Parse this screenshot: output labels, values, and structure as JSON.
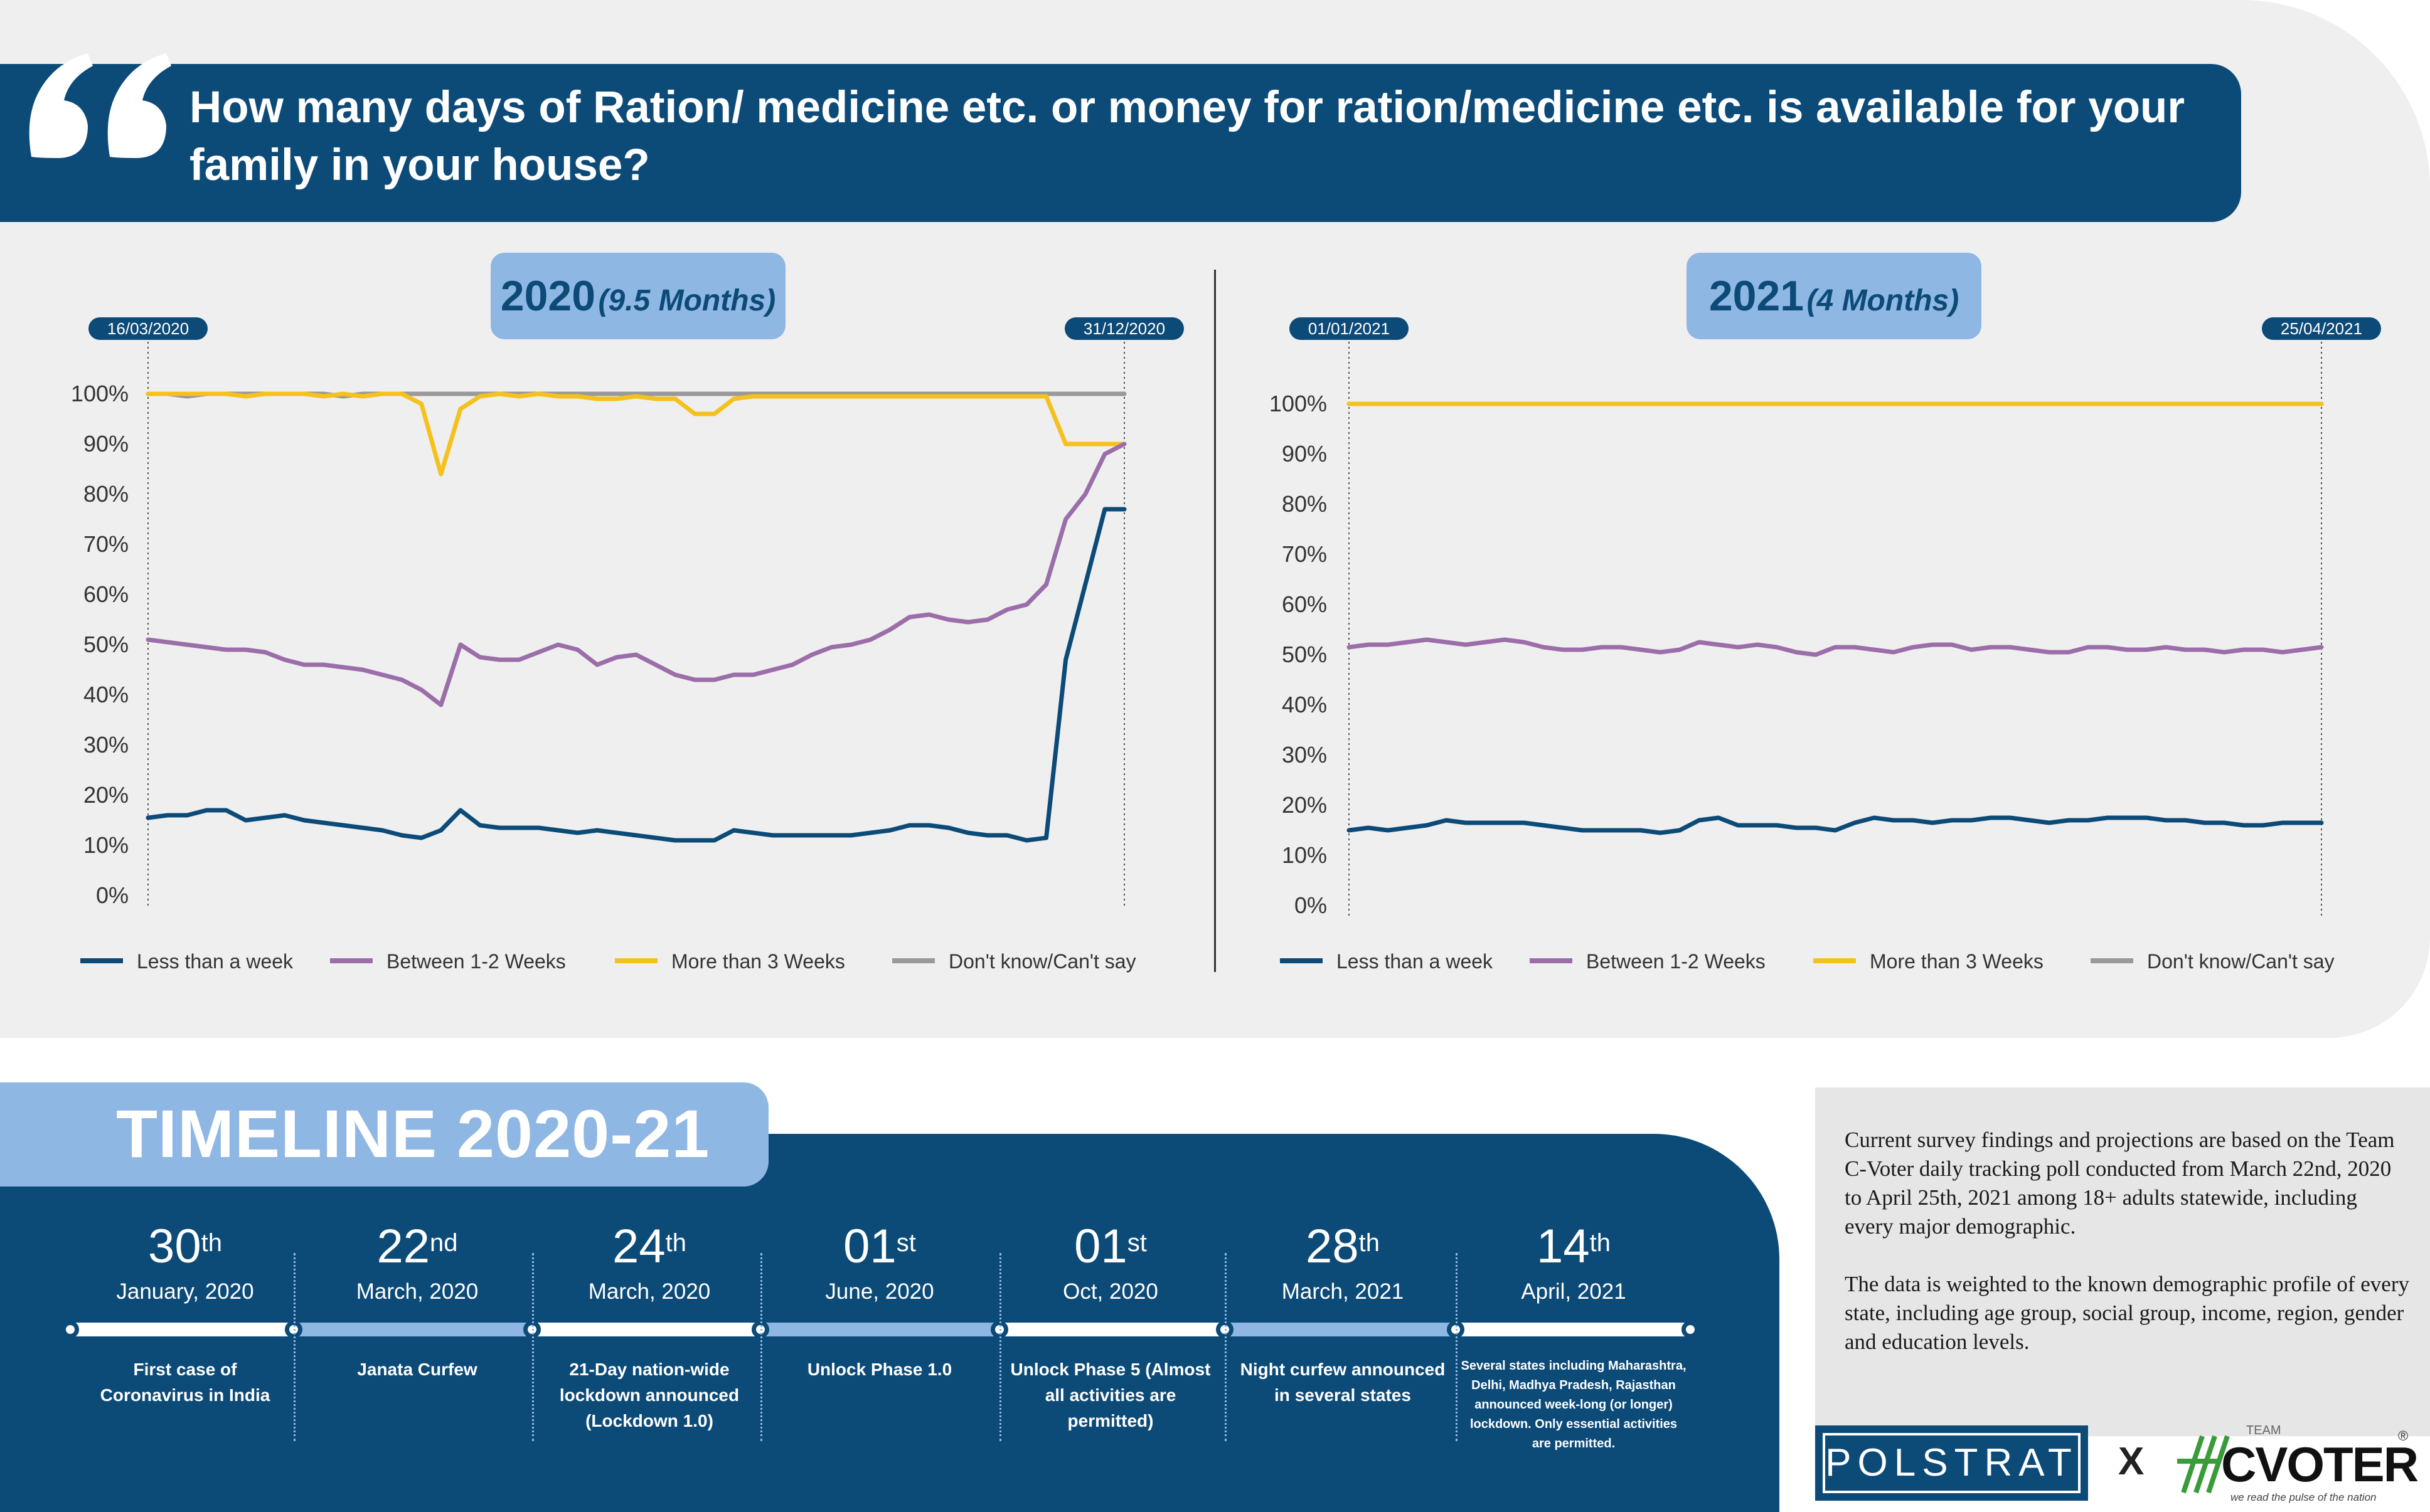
{
  "question": "How many days of Ration/ medicine etc. or money for ration/medicine etc. is available for your family in your house?",
  "colors": {
    "navy": "#0c4a78",
    "light_blue": "#8fb7e3",
    "less": "#0c4a78",
    "between": "#9b6ea9",
    "more": "#f5c11c",
    "dontknow": "#999999"
  },
  "chart_data": [
    {
      "type": "line",
      "title": "2020",
      "subtitle": "(9.5 Months)",
      "start_date": "16/03/2020",
      "end_date": "31/12/2020",
      "ylim": [
        0,
        100
      ],
      "y_ticks": [
        "0%",
        "10%",
        "20%",
        "30%",
        "40%",
        "50%",
        "60%",
        "70%",
        "80%",
        "90%",
        "100%"
      ],
      "x": [
        0,
        2,
        4,
        6,
        8,
        10,
        12,
        14,
        16,
        18,
        20,
        22,
        24,
        26,
        28,
        30,
        32,
        34,
        36,
        38,
        40,
        42,
        44,
        46,
        48,
        50,
        52,
        54,
        56,
        58,
        60,
        62,
        64,
        66,
        68,
        70,
        72,
        74,
        76,
        78,
        80,
        82,
        84,
        86,
        88,
        90,
        92,
        94,
        96,
        98,
        100
      ],
      "series": [
        {
          "name": "Less than a week",
          "key": "less",
          "values": [
            15.5,
            16,
            16,
            17,
            17,
            15,
            15.5,
            16,
            15,
            14.5,
            14,
            13.5,
            13,
            12,
            11.5,
            13,
            17,
            14,
            13.5,
            13.5,
            13.5,
            13,
            12.5,
            13,
            12.5,
            12,
            11.5,
            11,
            11,
            11,
            13,
            12.5,
            12,
            12,
            12,
            12,
            12,
            12.5,
            13,
            14,
            14,
            13.5,
            12.5,
            12,
            12,
            11,
            11.5,
            47,
            62,
            77,
            77
          ]
        },
        {
          "name": "Between 1-2 Weeks",
          "key": "between",
          "values": [
            51,
            50.5,
            50,
            49.5,
            49,
            49,
            48.5,
            47,
            46,
            46,
            45.5,
            45,
            44,
            43,
            41,
            38,
            50,
            47.5,
            47,
            47,
            48.5,
            50,
            49,
            46,
            47.5,
            48,
            46,
            44,
            43,
            43,
            44,
            44,
            45,
            46,
            48,
            49.5,
            50,
            51,
            53,
            55.5,
            56,
            55,
            54.5,
            55,
            57,
            58,
            62,
            75,
            80,
            88,
            90
          ]
        },
        {
          "name": "More than 3 Weeks",
          "key": "more",
          "values": [
            100,
            100,
            100,
            100,
            100,
            99.5,
            100,
            100,
            100,
            99.5,
            100,
            99.5,
            100,
            100,
            98,
            84,
            97,
            99.5,
            100,
            99.5,
            100,
            99.5,
            99.5,
            99,
            99,
            99.5,
            99,
            99,
            96,
            96,
            99,
            99.5,
            99.5,
            99.5,
            99.5,
            99.5,
            99.5,
            99.5,
            99.5,
            99.5,
            99.5,
            99.5,
            99.5,
            99.5,
            99.5,
            99.5,
            99.5,
            90,
            90,
            90,
            90
          ]
        },
        {
          "name": "Don't know/Can't say",
          "key": "dontknow",
          "values": [
            100,
            100,
            99.5,
            100,
            100,
            100,
            100,
            100,
            100,
            100,
            99.5,
            100,
            100,
            100,
            100,
            100,
            100,
            100,
            100,
            100,
            100,
            100,
            100,
            100,
            100,
            100,
            100,
            100,
            100,
            100,
            100,
            100,
            100,
            100,
            100,
            100,
            100,
            100,
            100,
            100,
            100,
            100,
            100,
            100,
            100,
            100,
            100,
            100,
            100,
            100,
            100
          ]
        }
      ]
    },
    {
      "type": "line",
      "title": "2021",
      "subtitle": "(4 Months)",
      "start_date": "01/01/2021",
      "end_date": "25/04/2021",
      "ylim": [
        0,
        100
      ],
      "y_ticks": [
        "0%",
        "10%",
        "20%",
        "30%",
        "40%",
        "50%",
        "60%",
        "70%",
        "80%",
        "90%",
        "100%"
      ],
      "x": [
        0,
        2,
        4,
        6,
        8,
        10,
        12,
        14,
        16,
        18,
        20,
        22,
        24,
        26,
        28,
        30,
        32,
        34,
        36,
        38,
        40,
        42,
        44,
        46,
        48,
        50,
        52,
        54,
        56,
        58,
        60,
        62,
        64,
        66,
        68,
        70,
        72,
        74,
        76,
        78,
        80,
        82,
        84,
        86,
        88,
        90,
        92,
        94,
        96,
        98,
        100
      ],
      "series": [
        {
          "name": "Less than a week",
          "key": "less",
          "values": [
            15,
            15.5,
            15,
            15.5,
            16,
            17,
            16.5,
            16.5,
            16.5,
            16.5,
            16,
            15.5,
            15,
            15,
            15,
            15,
            14.5,
            15,
            17,
            17.5,
            16,
            16,
            16,
            15.5,
            15.5,
            15,
            16.5,
            17.5,
            17,
            17,
            16.5,
            17,
            17,
            17.5,
            17.5,
            17,
            16.5,
            17,
            17,
            17.5,
            17.5,
            17.5,
            17,
            17,
            16.5,
            16.5,
            16,
            16,
            16.5,
            16.5,
            16.5
          ]
        },
        {
          "name": "Between 1-2 Weeks",
          "key": "between",
          "values": [
            51.5,
            52,
            52,
            52.5,
            53,
            52.5,
            52,
            52.5,
            53,
            52.5,
            51.5,
            51,
            51,
            51.5,
            51.5,
            51,
            50.5,
            51,
            52.5,
            52,
            51.5,
            52,
            51.5,
            50.5,
            50,
            51.5,
            51.5,
            51,
            50.5,
            51.5,
            52,
            52,
            51,
            51.5,
            51.5,
            51,
            50.5,
            50.5,
            51.5,
            51.5,
            51,
            51,
            51.5,
            51,
            51,
            50.5,
            51,
            51,
            50.5,
            51,
            51.5
          ]
        },
        {
          "name": "More than 3 Weeks",
          "key": "more",
          "values": [
            100,
            100,
            100,
            100,
            100,
            100,
            100,
            100,
            100,
            100,
            100,
            100,
            100,
            100,
            100,
            100,
            100,
            100,
            100,
            100,
            100,
            100,
            100,
            100,
            100,
            100,
            100,
            100,
            100,
            100,
            100,
            100,
            100,
            100,
            100,
            100,
            100,
            100,
            100,
            100,
            100,
            100,
            100,
            100,
            100,
            100,
            100,
            100,
            100,
            100,
            100
          ]
        },
        {
          "name": "Don't know/Can't say",
          "key": "dontknow",
          "values": [
            100,
            100,
            100,
            100,
            100,
            100,
            100,
            100,
            100,
            100,
            100,
            100,
            100,
            100,
            100,
            100,
            100,
            100,
            100,
            100,
            100,
            100,
            100,
            100,
            100,
            100,
            100,
            100,
            100,
            100,
            100,
            100,
            100,
            100,
            100,
            100,
            100,
            100,
            100,
            100,
            100,
            100,
            100,
            100,
            100,
            100,
            100,
            100,
            100,
            100,
            100
          ]
        }
      ]
    }
  ],
  "legend": [
    "Less than a week",
    "Between 1-2 Weeks",
    "More than 3 Weeks",
    "Don't know/Can't say"
  ],
  "timeline": {
    "title": "TIMELINE 2020-21",
    "events": [
      {
        "day": "30",
        "suffix": "th",
        "month": "January, 2020",
        "desc": "First case of Coronavirus in India"
      },
      {
        "day": "22",
        "suffix": "nd",
        "month": "March, 2020",
        "desc": "Janata Curfew"
      },
      {
        "day": "24",
        "suffix": "th",
        "month": "March, 2020",
        "desc": "21-Day nation-wide lockdown announced (Lockdown 1.0)"
      },
      {
        "day": "01",
        "suffix": "st",
        "month": "June, 2020",
        "desc": "Unlock Phase 1.0"
      },
      {
        "day": "01",
        "suffix": "st",
        "month": "Oct, 2020",
        "desc": "Unlock Phase 5 (Almost all activities are permitted)"
      },
      {
        "day": "28",
        "suffix": "th",
        "month": "March, 2021",
        "desc": "Night curfew announced in several states"
      },
      {
        "day": "14",
        "suffix": "th",
        "month": "April, 2021",
        "desc": "Several states including Maharashtra, Delhi, Madhya Pradesh, Rajasthan announced week-long (or longer) lockdown. Only essential activities are permitted."
      }
    ]
  },
  "note": {
    "p1": "Current survey findings and projections are based on the Team C-Voter daily tracking poll conducted from March 22nd, 2020 to April 25th, 2021 among 18+ adults statewide, including every major demographic.",
    "p2": "The data is weighted to the known demographic profile of every state, including age group, social group, income, region, gender and education levels."
  },
  "logos": {
    "polstrat": "POLSTRAT",
    "x": "X",
    "cvoter_team": "TEAM",
    "cvoter": "CVOTER",
    "cvoter_tagline": "we read the pulse of the nation",
    "registered": "®"
  }
}
